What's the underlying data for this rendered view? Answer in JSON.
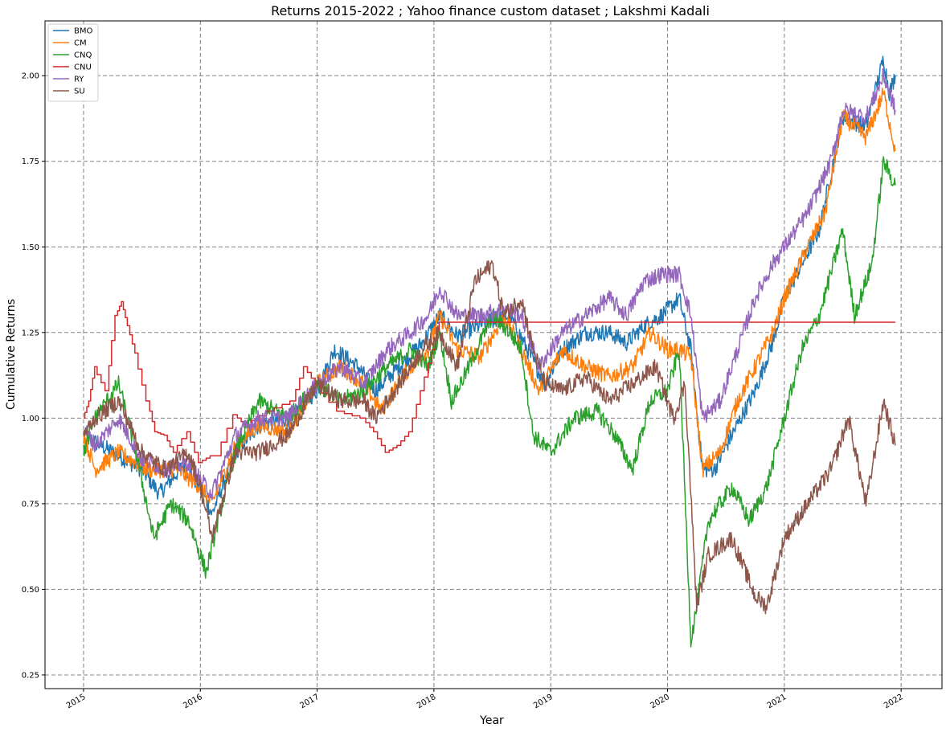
{
  "chart_data": {
    "type": "line",
    "title": "Returns 2015-2022 ; Yahoo finance custom dataset ; Lakshmi Kadali",
    "xlabel": "Year",
    "ylabel": "Cumulative Returns",
    "xlim": [
      2014.67,
      2022.35
    ],
    "ylim": [
      0.21,
      2.16
    ],
    "xticks": [
      2015,
      2016,
      2017,
      2018,
      2019,
      2020,
      2021,
      2022
    ],
    "xtick_labels": [
      "2015",
      "2016",
      "2017",
      "2018",
      "2019",
      "2020",
      "2021",
      "2022"
    ],
    "yticks": [
      0.25,
      0.5,
      0.75,
      1.0,
      1.25,
      1.5,
      1.75,
      2.0
    ],
    "ytick_labels": [
      "0.25",
      "0.50",
      "0.75",
      "1.00",
      "1.25",
      "1.50",
      "1.75",
      "2.00"
    ],
    "grid": true,
    "legend_position": "top-left",
    "series": [
      {
        "name": "BMO",
        "color": "#1f77b4",
        "x": [
          2015.0,
          2015.25,
          2015.5,
          2015.65,
          2015.85,
          2016.0,
          2016.1,
          2016.3,
          2016.5,
          2016.75,
          2017.0,
          2017.15,
          2017.35,
          2017.5,
          2017.7,
          2017.9,
          2018.05,
          2018.2,
          2018.45,
          2018.65,
          2018.8,
          2018.95,
          2019.1,
          2019.3,
          2019.5,
          2019.65,
          2019.8,
          2019.95,
          2020.1,
          2020.2,
          2020.3,
          2020.4,
          2020.55,
          2020.75,
          2020.9,
          2021.0,
          2021.15,
          2021.3,
          2021.5,
          2021.7,
          2021.85,
          2021.9,
          2021.95
        ],
        "y": [
          0.95,
          0.9,
          0.85,
          0.78,
          0.86,
          0.8,
          0.72,
          0.9,
          0.98,
          1.0,
          1.08,
          1.2,
          1.15,
          1.08,
          1.15,
          1.22,
          1.3,
          1.24,
          1.28,
          1.3,
          1.2,
          1.1,
          1.2,
          1.25,
          1.25,
          1.22,
          1.27,
          1.3,
          1.35,
          1.2,
          0.85,
          0.85,
          0.95,
          1.08,
          1.22,
          1.35,
          1.45,
          1.55,
          1.88,
          1.85,
          2.05,
          1.95,
          2.0
        ]
      },
      {
        "name": "CM",
        "color": "#ff7f0e",
        "x": [
          2015.0,
          2015.1,
          2015.3,
          2015.55,
          2015.8,
          2016.0,
          2016.1,
          2016.3,
          2016.5,
          2016.75,
          2017.0,
          2017.2,
          2017.4,
          2017.55,
          2017.75,
          2017.95,
          2018.05,
          2018.2,
          2018.4,
          2018.6,
          2018.75,
          2018.9,
          2019.1,
          2019.3,
          2019.5,
          2019.7,
          2019.85,
          2020.0,
          2020.1,
          2020.2,
          2020.3,
          2020.45,
          2020.6,
          2020.75,
          2020.9,
          2021.0,
          2021.2,
          2021.35,
          2021.5,
          2021.7,
          2021.85,
          2021.95
        ],
        "y": [
          0.95,
          0.85,
          0.9,
          0.85,
          0.85,
          0.8,
          0.75,
          0.92,
          0.98,
          0.96,
          1.1,
          1.15,
          1.1,
          1.02,
          1.13,
          1.2,
          1.3,
          1.2,
          1.18,
          1.3,
          1.2,
          1.08,
          1.2,
          1.15,
          1.12,
          1.15,
          1.25,
          1.2,
          1.2,
          1.18,
          0.85,
          0.9,
          1.05,
          1.15,
          1.25,
          1.35,
          1.5,
          1.6,
          1.88,
          1.82,
          1.95,
          1.78
        ]
      },
      {
        "name": "CNQ",
        "color": "#2ca02c",
        "x": [
          2015.0,
          2015.1,
          2015.3,
          2015.45,
          2015.6,
          2015.75,
          2015.9,
          2016.05,
          2016.15,
          2016.3,
          2016.5,
          2016.75,
          2017.0,
          2017.2,
          2017.4,
          2017.6,
          2017.8,
          2017.95,
          2018.05,
          2018.15,
          2018.3,
          2018.5,
          2018.65,
          2018.75,
          2018.85,
          2019.0,
          2019.2,
          2019.4,
          2019.55,
          2019.7,
          2019.85,
          2020.0,
          2020.1,
          2020.2,
          2020.25,
          2020.35,
          2020.55,
          2020.7,
          2020.85,
          2021.0,
          2021.15,
          2021.3,
          2021.5,
          2021.6,
          2021.75,
          2021.85,
          2021.95
        ],
        "y": [
          0.9,
          1.0,
          1.1,
          0.9,
          0.65,
          0.75,
          0.7,
          0.55,
          0.7,
          0.9,
          1.05,
          1.0,
          1.1,
          1.05,
          1.08,
          1.15,
          1.2,
          1.15,
          1.25,
          1.05,
          1.15,
          1.3,
          1.25,
          1.2,
          0.95,
          0.9,
          1.0,
          1.02,
          0.95,
          0.85,
          1.05,
          1.08,
          1.2,
          0.35,
          0.45,
          0.7,
          0.8,
          0.7,
          0.8,
          1.0,
          1.2,
          1.3,
          1.55,
          1.3,
          1.45,
          1.75,
          1.68
        ]
      },
      {
        "name": "CNU",
        "color": "#d62728",
        "x": [
          2015.0,
          2015.05,
          2015.1,
          2015.2,
          2015.28,
          2015.33,
          2015.38,
          2015.45,
          2015.55,
          2015.62,
          2015.7,
          2015.78,
          2015.9,
          2016.0,
          2016.1,
          2016.15,
          2016.3,
          2016.4,
          2016.6,
          2016.8,
          2016.9,
          2017.0,
          2017.2,
          2017.4,
          2017.5,
          2017.6,
          2017.7,
          2017.8,
          2017.9,
          2018.0,
          2018.05,
          2021.95
        ],
        "y": [
          1.0,
          1.05,
          1.15,
          1.08,
          1.3,
          1.34,
          1.27,
          1.19,
          1.05,
          0.96,
          0.95,
          0.9,
          0.96,
          0.87,
          0.89,
          0.89,
          1.01,
          0.98,
          1.02,
          1.05,
          1.15,
          1.1,
          1.02,
          1.0,
          0.96,
          0.9,
          0.92,
          0.96,
          1.08,
          1.2,
          1.28,
          1.28
        ]
      },
      {
        "name": "RY",
        "color": "#9467bd",
        "x": [
          2015.0,
          2015.1,
          2015.3,
          2015.5,
          2015.7,
          2015.9,
          2016.0,
          2016.1,
          2016.3,
          2016.5,
          2016.75,
          2017.0,
          2017.2,
          2017.4,
          2017.6,
          2017.8,
          2017.95,
          2018.05,
          2018.2,
          2018.4,
          2018.6,
          2018.75,
          2018.9,
          2019.1,
          2019.3,
          2019.5,
          2019.65,
          2019.8,
          2019.95,
          2020.1,
          2020.2,
          2020.3,
          2020.45,
          2020.6,
          2020.75,
          2020.9,
          2021.0,
          2021.2,
          2021.4,
          2021.5,
          2021.7,
          2021.85,
          2021.95
        ],
        "y": [
          0.97,
          0.92,
          1.0,
          0.88,
          0.85,
          0.87,
          0.82,
          0.78,
          0.95,
          1.0,
          1.0,
          1.1,
          1.15,
          1.1,
          1.2,
          1.25,
          1.3,
          1.38,
          1.3,
          1.3,
          1.32,
          1.3,
          1.15,
          1.25,
          1.3,
          1.35,
          1.3,
          1.4,
          1.42,
          1.42,
          1.3,
          1.0,
          1.05,
          1.2,
          1.35,
          1.45,
          1.5,
          1.6,
          1.75,
          1.9,
          1.88,
          2.0,
          1.9
        ]
      },
      {
        "name": "SU",
        "color": "#8c564b",
        "x": [
          2015.0,
          2015.1,
          2015.3,
          2015.5,
          2015.7,
          2015.9,
          2016.0,
          2016.1,
          2016.3,
          2016.5,
          2016.75,
          2017.0,
          2017.2,
          2017.4,
          2017.5,
          2017.7,
          2017.9,
          2018.05,
          2018.2,
          2018.35,
          2018.5,
          2018.6,
          2018.75,
          2018.85,
          2018.95,
          2019.1,
          2019.3,
          2019.5,
          2019.7,
          2019.9,
          2020.05,
          2020.15,
          2020.25,
          2020.35,
          2020.55,
          2020.75,
          2020.85,
          2021.0,
          2021.2,
          2021.4,
          2021.55,
          2021.7,
          2021.85,
          2021.95
        ],
        "y": [
          0.95,
          1.0,
          1.05,
          0.9,
          0.85,
          0.9,
          0.8,
          0.65,
          0.9,
          0.9,
          0.95,
          1.1,
          1.05,
          1.05,
          1.0,
          1.1,
          1.2,
          1.25,
          1.15,
          1.4,
          1.45,
          1.3,
          1.35,
          1.2,
          1.1,
          1.08,
          1.12,
          1.05,
          1.1,
          1.15,
          1.0,
          1.1,
          0.45,
          0.6,
          0.65,
          0.48,
          0.45,
          0.65,
          0.75,
          0.85,
          1.0,
          0.75,
          1.05,
          0.92
        ]
      }
    ]
  }
}
